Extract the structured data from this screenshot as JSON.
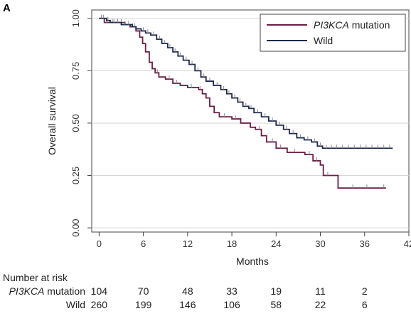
{
  "panel_label": "A",
  "chart_data": {
    "type": "line",
    "subtype": "kaplan-meier",
    "xlabel": "Months",
    "ylabel": "Overall survival",
    "xlim": [
      -1,
      42
    ],
    "ylim": [
      -0.02,
      1.04
    ],
    "x_ticks": [
      0,
      6,
      12,
      18,
      24,
      30,
      36,
      42
    ],
    "y_ticks": [
      0.0,
      0.25,
      0.5,
      0.75,
      1.0
    ],
    "y_tick_labels": [
      "0.00",
      "0.25",
      "0.50",
      "0.75",
      "1.00"
    ],
    "grid": "horizontal",
    "legend_position": "top-right",
    "series": [
      {
        "name_italic": "PI3KCA",
        "name_rest": " mutation",
        "color": "#6b1e47",
        "steps": [
          [
            0,
            1.0
          ],
          [
            0.7,
            0.98
          ],
          [
            3.5,
            0.97
          ],
          [
            4.2,
            0.96
          ],
          [
            5.0,
            0.94
          ],
          [
            5.5,
            0.91
          ],
          [
            5.9,
            0.88
          ],
          [
            6.3,
            0.84
          ],
          [
            6.8,
            0.79
          ],
          [
            7.2,
            0.76
          ],
          [
            7.6,
            0.74
          ],
          [
            8.1,
            0.72
          ],
          [
            9.0,
            0.71
          ],
          [
            10.0,
            0.69
          ],
          [
            11.0,
            0.68
          ],
          [
            12.0,
            0.67
          ],
          [
            13.5,
            0.66
          ],
          [
            14.0,
            0.64
          ],
          [
            14.5,
            0.62
          ],
          [
            15.0,
            0.58
          ],
          [
            15.6,
            0.55
          ],
          [
            16.3,
            0.53
          ],
          [
            18.0,
            0.52
          ],
          [
            19.2,
            0.5
          ],
          [
            20.5,
            0.48
          ],
          [
            21.2,
            0.47
          ],
          [
            22.0,
            0.44
          ],
          [
            22.7,
            0.41
          ],
          [
            24.0,
            0.38
          ],
          [
            25.5,
            0.36
          ],
          [
            27.9,
            0.35
          ],
          [
            29.0,
            0.32
          ],
          [
            30.0,
            0.3
          ],
          [
            30.4,
            0.25
          ],
          [
            32.4,
            0.19
          ],
          [
            38.9,
            0.19
          ]
        ],
        "censored": [
          [
            0.3,
            1.0
          ],
          [
            1.0,
            0.98
          ],
          [
            1.8,
            0.98
          ],
          [
            2.5,
            0.98
          ],
          [
            3.0,
            0.98
          ],
          [
            4.5,
            0.96
          ],
          [
            7.9,
            0.74
          ],
          [
            9.5,
            0.71
          ],
          [
            10.5,
            0.69
          ],
          [
            12.5,
            0.67
          ],
          [
            13.8,
            0.66
          ],
          [
            17.0,
            0.53
          ],
          [
            18.5,
            0.52
          ],
          [
            21.7,
            0.47
          ],
          [
            23.5,
            0.41
          ],
          [
            24.6,
            0.38
          ],
          [
            26.5,
            0.36
          ],
          [
            28.5,
            0.35
          ],
          [
            29.5,
            0.32
          ],
          [
            31.0,
            0.25
          ],
          [
            34.4,
            0.19
          ],
          [
            36.3,
            0.19
          ],
          [
            38.6,
            0.19
          ]
        ]
      },
      {
        "name": "Wild",
        "color": "#1f2a4d",
        "steps": [
          [
            0,
            1.0
          ],
          [
            1.0,
            0.99
          ],
          [
            1.5,
            0.98
          ],
          [
            3.0,
            0.97
          ],
          [
            4.5,
            0.96
          ],
          [
            5.0,
            0.95
          ],
          [
            5.7,
            0.94
          ],
          [
            6.3,
            0.93
          ],
          [
            7.0,
            0.92
          ],
          [
            7.8,
            0.9
          ],
          [
            8.5,
            0.88
          ],
          [
            9.3,
            0.86
          ],
          [
            10.0,
            0.84
          ],
          [
            10.7,
            0.82
          ],
          [
            11.4,
            0.8
          ],
          [
            12.2,
            0.78
          ],
          [
            13.0,
            0.75
          ],
          [
            13.8,
            0.72
          ],
          [
            14.5,
            0.7
          ],
          [
            15.5,
            0.68
          ],
          [
            16.5,
            0.66
          ],
          [
            17.3,
            0.64
          ],
          [
            18.0,
            0.62
          ],
          [
            18.8,
            0.6
          ],
          [
            19.5,
            0.58
          ],
          [
            20.3,
            0.57
          ],
          [
            21.0,
            0.55
          ],
          [
            22.0,
            0.53
          ],
          [
            23.0,
            0.51
          ],
          [
            24.0,
            0.49
          ],
          [
            25.0,
            0.47
          ],
          [
            25.8,
            0.45
          ],
          [
            26.8,
            0.43
          ],
          [
            27.8,
            0.42
          ],
          [
            28.8,
            0.41
          ],
          [
            29.6,
            0.39
          ],
          [
            30.3,
            0.38
          ],
          [
            39.8,
            0.38
          ]
        ],
        "censored": [
          [
            0.3,
            1.0
          ],
          [
            0.6,
            1.0
          ],
          [
            1.2,
            0.99
          ],
          [
            2.0,
            0.98
          ],
          [
            2.5,
            0.98
          ],
          [
            3.5,
            0.97
          ],
          [
            4.0,
            0.97
          ],
          [
            4.8,
            0.96
          ],
          [
            6.0,
            0.94
          ],
          [
            6.6,
            0.93
          ],
          [
            7.4,
            0.92
          ],
          [
            8.2,
            0.9
          ],
          [
            8.9,
            0.88
          ],
          [
            9.6,
            0.86
          ],
          [
            10.3,
            0.84
          ],
          [
            11.0,
            0.82
          ],
          [
            11.8,
            0.8
          ],
          [
            12.6,
            0.78
          ],
          [
            13.4,
            0.75
          ],
          [
            14.2,
            0.72
          ],
          [
            15.0,
            0.7
          ],
          [
            16.0,
            0.68
          ],
          [
            16.9,
            0.66
          ],
          [
            17.6,
            0.64
          ],
          [
            18.4,
            0.62
          ],
          [
            19.1,
            0.6
          ],
          [
            19.9,
            0.58
          ],
          [
            20.6,
            0.57
          ],
          [
            21.5,
            0.55
          ],
          [
            22.5,
            0.53
          ],
          [
            23.5,
            0.51
          ],
          [
            24.5,
            0.49
          ],
          [
            25.4,
            0.47
          ],
          [
            26.3,
            0.45
          ],
          [
            27.3,
            0.43
          ],
          [
            28.3,
            0.42
          ],
          [
            29.2,
            0.41
          ],
          [
            30.0,
            0.39
          ],
          [
            30.8,
            0.38
          ],
          [
            31.5,
            0.38
          ],
          [
            32.2,
            0.38
          ],
          [
            33.0,
            0.38
          ],
          [
            33.8,
            0.38
          ],
          [
            34.6,
            0.38
          ],
          [
            35.4,
            0.38
          ],
          [
            36.2,
            0.38
          ],
          [
            37.0,
            0.38
          ],
          [
            37.8,
            0.38
          ],
          [
            38.6,
            0.38
          ],
          [
            39.4,
            0.38
          ]
        ]
      }
    ]
  },
  "risk_table": {
    "title": "Number at risk",
    "rows": [
      {
        "label_italic": "PI3KCA",
        "label_rest": " mutation",
        "values": [
          "104",
          "70",
          "48",
          "33",
          "19",
          "11",
          "2"
        ]
      },
      {
        "label_italic": "",
        "label_rest": "Wild",
        "values": [
          "260",
          "199",
          "146",
          "106",
          "58",
          "22",
          "6"
        ]
      }
    ]
  }
}
